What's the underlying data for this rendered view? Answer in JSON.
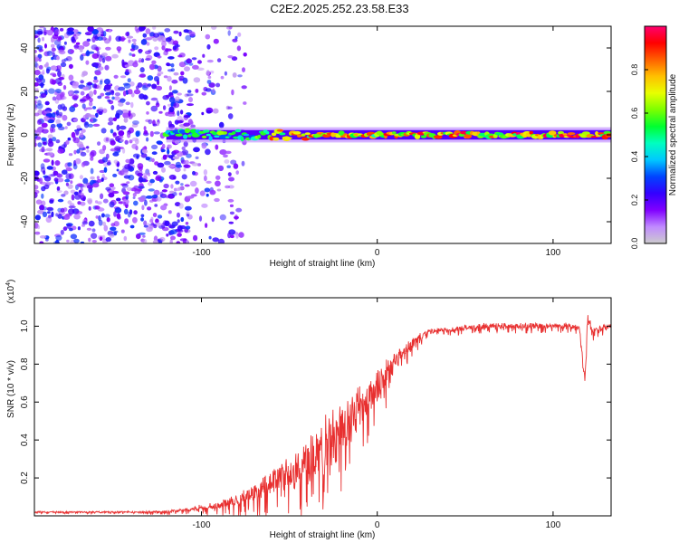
{
  "figure_title": "C2E2.2025.252.23.58.E33",
  "chart_data": [
    {
      "type": "heatmap",
      "title": "",
      "xlabel": "Height of straight line (km)",
      "ylabel": "Frequency (Hz)",
      "xlim": [
        -195,
        133
      ],
      "ylim": [
        -50,
        50
      ],
      "xticks": [
        -100,
        0,
        100
      ],
      "xtick_labels": [
        "-100",
        "0",
        "100"
      ],
      "yticks": [
        -40,
        -20,
        0,
        20,
        40
      ],
      "ytick_labels": [
        "-40",
        "-20",
        "0",
        "20",
        "40"
      ],
      "colorbar": {
        "label": "Normalized spectral amplitude",
        "range": [
          0,
          1
        ],
        "ticks": [
          0.0,
          0.2,
          0.4,
          0.6,
          0.8
        ],
        "tick_labels": [
          "0.0",
          "0.2",
          "0.4",
          "0.6",
          "0.8"
        ],
        "colormap": [
          "#cccccc",
          "#c08aff",
          "#8000ff",
          "#3300ff",
          "#0044ff",
          "#00c8ff",
          "#00ffc0",
          "#00ff30",
          "#7cff00",
          "#e8ff00",
          "#ffc000",
          "#ff6000",
          "#ff0000",
          "#ff0070"
        ]
      },
      "description_values": {
        "noise_region_x": [
          -195,
          -85
        ],
        "band_start_x": -120,
        "band_center_frequency": 0
      }
    },
    {
      "type": "line",
      "title": "",
      "xlabel": "Height of straight line (km)",
      "ylabel": "SNR (10 * v/v)",
      "scale_label": "(x10",
      "scale_exponent": "4",
      "xlim": [
        -195,
        133
      ],
      "ylim": [
        0,
        1.15
      ],
      "xticks": [
        -100,
        0,
        100
      ],
      "xtick_labels": [
        "-100",
        "0",
        "100"
      ],
      "yticks": [
        0.2,
        0.4,
        0.6,
        0.8,
        1.0
      ],
      "ytick_labels": [
        "0.2",
        "0.4",
        "0.6",
        "0.8",
        "1.0"
      ],
      "series": [
        {
          "name": "SNR",
          "color": "#e83030",
          "x": [
            -195,
            -150,
            -125,
            -110,
            -95,
            -85,
            -75,
            -65,
            -60,
            -55,
            -50,
            -45,
            -40,
            -35,
            -30,
            -25,
            -20,
            -15,
            -10,
            -5,
            0,
            5,
            10,
            15,
            20,
            25,
            30,
            40,
            50,
            60,
            70,
            80,
            90,
            100,
            110,
            115,
            118,
            120,
            122,
            125,
            133
          ],
          "values": [
            0.02,
            0.02,
            0.02,
            0.03,
            0.05,
            0.07,
            0.1,
            0.14,
            0.18,
            0.2,
            0.22,
            0.25,
            0.29,
            0.32,
            0.37,
            0.42,
            0.47,
            0.52,
            0.58,
            0.63,
            0.68,
            0.75,
            0.82,
            0.87,
            0.91,
            0.95,
            0.97,
            0.98,
            0.99,
            1.0,
            1.0,
            1.0,
            1.0,
            1.0,
            1.0,
            0.99,
            0.72,
            1.05,
            0.97,
            0.98,
            1.0
          ],
          "spread": [
            0.005,
            0.005,
            0.008,
            0.012,
            0.025,
            0.04,
            0.06,
            0.08,
            0.1,
            0.11,
            0.13,
            0.15,
            0.16,
            0.17,
            0.18,
            0.18,
            0.18,
            0.17,
            0.16,
            0.14,
            0.12,
            0.1,
            0.07,
            0.05,
            0.04,
            0.03,
            0.025,
            0.02,
            0.02,
            0.02,
            0.02,
            0.02,
            0.02,
            0.02,
            0.02,
            0.02,
            0.02,
            0.08,
            0.03,
            0.02,
            0.02
          ]
        }
      ]
    }
  ]
}
